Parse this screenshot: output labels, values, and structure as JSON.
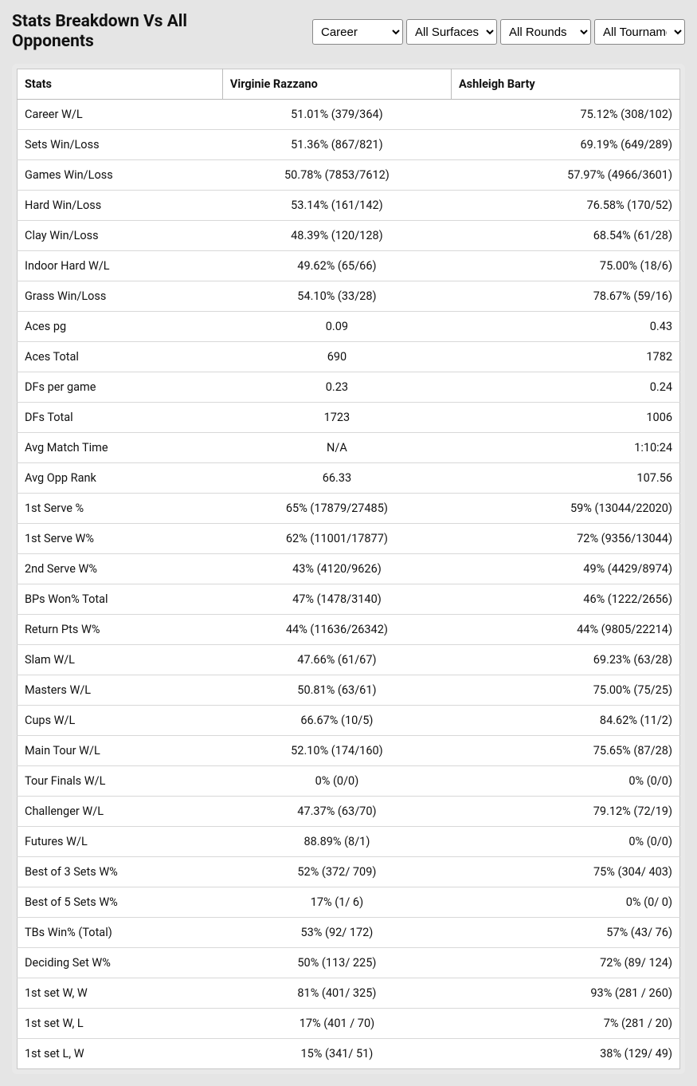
{
  "header": {
    "title": "Stats Breakdown Vs All Opponents"
  },
  "filters": {
    "period": {
      "selected": "Career",
      "options": [
        "Career"
      ]
    },
    "surface": {
      "selected": "All Surfaces",
      "options": [
        "All Surfaces"
      ]
    },
    "rounds": {
      "selected": "All Rounds",
      "options": [
        "All Rounds"
      ]
    },
    "tournaments": {
      "selected": "All Tournaments",
      "options": [
        "All Tournaments"
      ]
    }
  },
  "table": {
    "columns": [
      "Stats",
      "Virginie Razzano",
      "Ashleigh Barty"
    ],
    "rows": [
      [
        "Career W/L",
        "51.01% (379/364)",
        "75.12% (308/102)"
      ],
      [
        "Sets Win/Loss",
        "51.36% (867/821)",
        "69.19% (649/289)"
      ],
      [
        "Games Win/Loss",
        "50.78% (7853/7612)",
        "57.97% (4966/3601)"
      ],
      [
        "Hard Win/Loss",
        "53.14% (161/142)",
        "76.58% (170/52)"
      ],
      [
        "Clay Win/Loss",
        "48.39% (120/128)",
        "68.54% (61/28)"
      ],
      [
        "Indoor Hard W/L",
        "49.62% (65/66)",
        "75.00% (18/6)"
      ],
      [
        "Grass Win/Loss",
        "54.10% (33/28)",
        "78.67% (59/16)"
      ],
      [
        "Aces pg",
        "0.09",
        "0.43"
      ],
      [
        "Aces Total",
        "690",
        "1782"
      ],
      [
        "DFs per game",
        "0.23",
        "0.24"
      ],
      [
        "DFs Total",
        "1723",
        "1006"
      ],
      [
        "Avg Match Time",
        "N/A",
        "1:10:24"
      ],
      [
        "Avg Opp Rank",
        "66.33",
        "107.56"
      ],
      [
        "1st Serve %",
        "65% (17879/27485)",
        "59% (13044/22020)"
      ],
      [
        "1st Serve W%",
        "62% (11001/17877)",
        "72% (9356/13044)"
      ],
      [
        "2nd Serve W%",
        "43% (4120/9626)",
        "49% (4429/8974)"
      ],
      [
        "BPs Won% Total",
        "47% (1478/3140)",
        "46% (1222/2656)"
      ],
      [
        "Return Pts W%",
        "44% (11636/26342)",
        "44% (9805/22214)"
      ],
      [
        "Slam W/L",
        "47.66% (61/67)",
        "69.23% (63/28)"
      ],
      [
        "Masters W/L",
        "50.81% (63/61)",
        "75.00% (75/25)"
      ],
      [
        "Cups W/L",
        "66.67% (10/5)",
        "84.62% (11/2)"
      ],
      [
        "Main Tour W/L",
        "52.10% (174/160)",
        "75.65% (87/28)"
      ],
      [
        "Tour Finals W/L",
        "0% (0/0)",
        "0% (0/0)"
      ],
      [
        "Challenger W/L",
        "47.37% (63/70)",
        "79.12% (72/19)"
      ],
      [
        "Futures W/L",
        "88.89% (8/1)",
        "0% (0/0)"
      ],
      [
        "Best of 3 Sets W%",
        "52% (372/ 709)",
        "75% (304/ 403)"
      ],
      [
        "Best of 5 Sets W%",
        "17% (1/ 6)",
        "0% (0/ 0)"
      ],
      [
        "TBs Win% (Total)",
        "53% (92/ 172)",
        "57% (43/ 76)"
      ],
      [
        "Deciding Set W%",
        "50% (113/ 225)",
        "72% (89/ 124)"
      ],
      [
        "1st set W, W",
        "81% (401/ 325)",
        "93% (281 / 260)"
      ],
      [
        "1st set W, L",
        "17% (401 / 70)",
        "7% (281 / 20)"
      ],
      [
        "1st set L, W",
        "15% (341/ 51)",
        "38% (129/ 49)"
      ]
    ]
  }
}
